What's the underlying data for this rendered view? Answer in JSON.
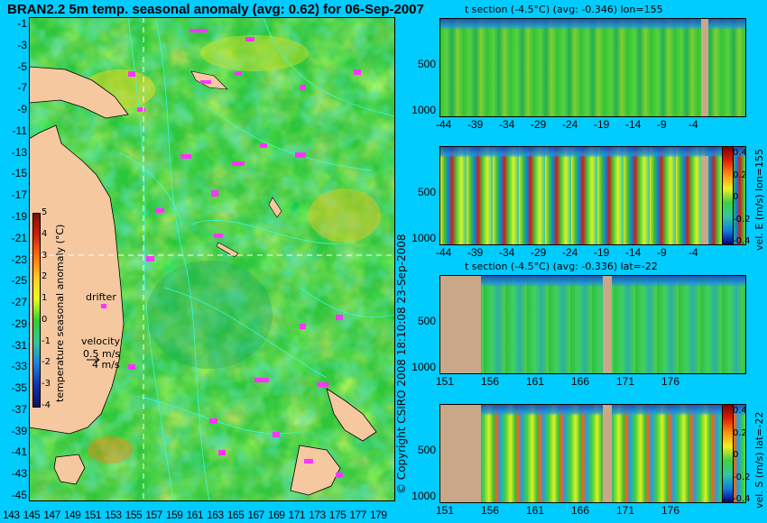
{
  "title": "BRAN2.2 5m temp. seasonal anomaly (avg: 0.62) for 06-Sep-2007",
  "map": {
    "y_ticks": [
      "-1",
      "-3",
      "-5",
      "-7",
      "-9",
      "-11",
      "-13",
      "-15",
      "-17",
      "-19",
      "-21",
      "-23",
      "-25",
      "-27",
      "-29",
      "-31",
      "-33",
      "-35",
      "-37",
      "-39",
      "-41",
      "-43",
      "-45"
    ],
    "x_ticks": [
      "143",
      "145",
      "147",
      "149",
      "151",
      "153",
      "155",
      "157",
      "159",
      "161",
      "163",
      "165",
      "167",
      "169",
      "171",
      "173",
      "175",
      "177",
      "179"
    ],
    "colorbar_label": "temperature seasonal anomaly (°C)",
    "colorbar_ticks": [
      "5",
      "4",
      "3",
      "2",
      "1",
      "0",
      "-1",
      "-2",
      "-3",
      "-4"
    ],
    "drifter_label": "drifter",
    "velocity_label": "velocity",
    "velocity_scale": "0.5 m/s",
    "velocity_scale2": "4 m/s",
    "colors": {
      "ocean_green": "#22cc33",
      "land": "#f5c8a0",
      "contour": "#33ffee",
      "drifter": "#ff33ff"
    }
  },
  "copyright": "© Copyright CSIRO 2008 18:10:08 23-Sep-2008",
  "panels": [
    {
      "title": "t section (-4.5°C) (avg: -0.346) lon=155",
      "x_ticks": [
        "-44",
        "-39",
        "-34",
        "-29",
        "-24",
        "-19",
        "-14",
        "-9",
        "-4"
      ],
      "y_ticks": [
        "500",
        "1000"
      ],
      "side_label": ""
    },
    {
      "title": "",
      "x_ticks": [
        "-44",
        "-39",
        "-34",
        "-29",
        "-24",
        "-19",
        "-14",
        "-9",
        "-4"
      ],
      "y_ticks": [
        "500",
        "1000"
      ],
      "side_label": "vel. E (m/s) lon=155",
      "cbar_ticks": [
        "0.4",
        "0.2",
        "0",
        "-0.2",
        "-0.4"
      ]
    },
    {
      "title": "t section (-4.5°C) (avg: -0.336) lat=-22",
      "x_ticks": [
        "151",
        "156",
        "161",
        "166",
        "171",
        "176"
      ],
      "y_ticks": [
        "500",
        "1000"
      ],
      "side_label": ""
    },
    {
      "title": "",
      "x_ticks": [
        "151",
        "156",
        "161",
        "166",
        "171",
        "176"
      ],
      "y_ticks": [
        "500",
        "1000"
      ],
      "side_label": "vel. S (m/s) lat=-22",
      "cbar_ticks": [
        "0.4",
        "0.2",
        "0",
        "-0.2",
        "-0.4"
      ]
    }
  ]
}
